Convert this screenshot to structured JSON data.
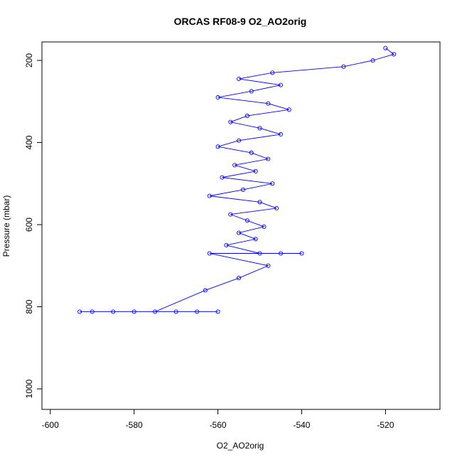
{
  "chart_data": {
    "type": "scatter",
    "title": "ORCAS RF08-9 O2_AO2orig",
    "xlabel": "O2_AO2orig",
    "ylabel": "Pressure (mbar)",
    "xlim": [
      -602,
      -507
    ],
    "ylim": [
      1050,
      155
    ],
    "y_axis_reversed": true,
    "xticks": [
      -600,
      -580,
      -560,
      -540,
      -520
    ],
    "yticks": [
      200,
      400,
      600,
      800,
      1000
    ],
    "grid": false,
    "style": {
      "point_color": "#0000ff",
      "marker": "open-circle",
      "connected_by_lines": true
    },
    "series": [
      {
        "points": [
          {
            "x": -520,
            "p": 170
          },
          {
            "x": -518,
            "p": 185
          },
          {
            "x": -523,
            "p": 200
          },
          {
            "x": -530,
            "p": 215
          },
          {
            "x": -547,
            "p": 230
          },
          {
            "x": -555,
            "p": 245
          },
          {
            "x": -545,
            "p": 260
          },
          {
            "x": -552,
            "p": 275
          },
          {
            "x": -560,
            "p": 290
          },
          {
            "x": -548,
            "p": 305
          },
          {
            "x": -543,
            "p": 320
          },
          {
            "x": -553,
            "p": 335
          },
          {
            "x": -557,
            "p": 350
          },
          {
            "x": -550,
            "p": 365
          },
          {
            "x": -545,
            "p": 380
          },
          {
            "x": -555,
            "p": 395
          },
          {
            "x": -560,
            "p": 410
          },
          {
            "x": -552,
            "p": 425
          },
          {
            "x": -548,
            "p": 440
          },
          {
            "x": -556,
            "p": 455
          },
          {
            "x": -551,
            "p": 470
          },
          {
            "x": -559,
            "p": 485
          },
          {
            "x": -547,
            "p": 500
          },
          {
            "x": -554,
            "p": 515
          },
          {
            "x": -562,
            "p": 530
          },
          {
            "x": -550,
            "p": 545
          },
          {
            "x": -546,
            "p": 560
          },
          {
            "x": -557,
            "p": 575
          },
          {
            "x": -553,
            "p": 590
          },
          {
            "x": -549,
            "p": 605
          },
          {
            "x": -555,
            "p": 620
          },
          {
            "x": -551,
            "p": 635
          },
          {
            "x": -558,
            "p": 650
          },
          {
            "x": -550,
            "p": 670
          },
          {
            "x": -545,
            "p": 670
          },
          {
            "x": -540,
            "p": 670
          },
          {
            "x": -562,
            "p": 670
          },
          {
            "x": -548,
            "p": 700
          },
          {
            "x": -555,
            "p": 730
          },
          {
            "x": -563,
            "p": 760
          },
          {
            "x": -575,
            "p": 812
          },
          {
            "x": -585,
            "p": 812
          },
          {
            "x": -590,
            "p": 812
          },
          {
            "x": -580,
            "p": 812
          },
          {
            "x": -570,
            "p": 812
          },
          {
            "x": -565,
            "p": 812
          },
          {
            "x": -560,
            "p": 812
          },
          {
            "x": -593,
            "p": 812
          }
        ]
      }
    ]
  }
}
